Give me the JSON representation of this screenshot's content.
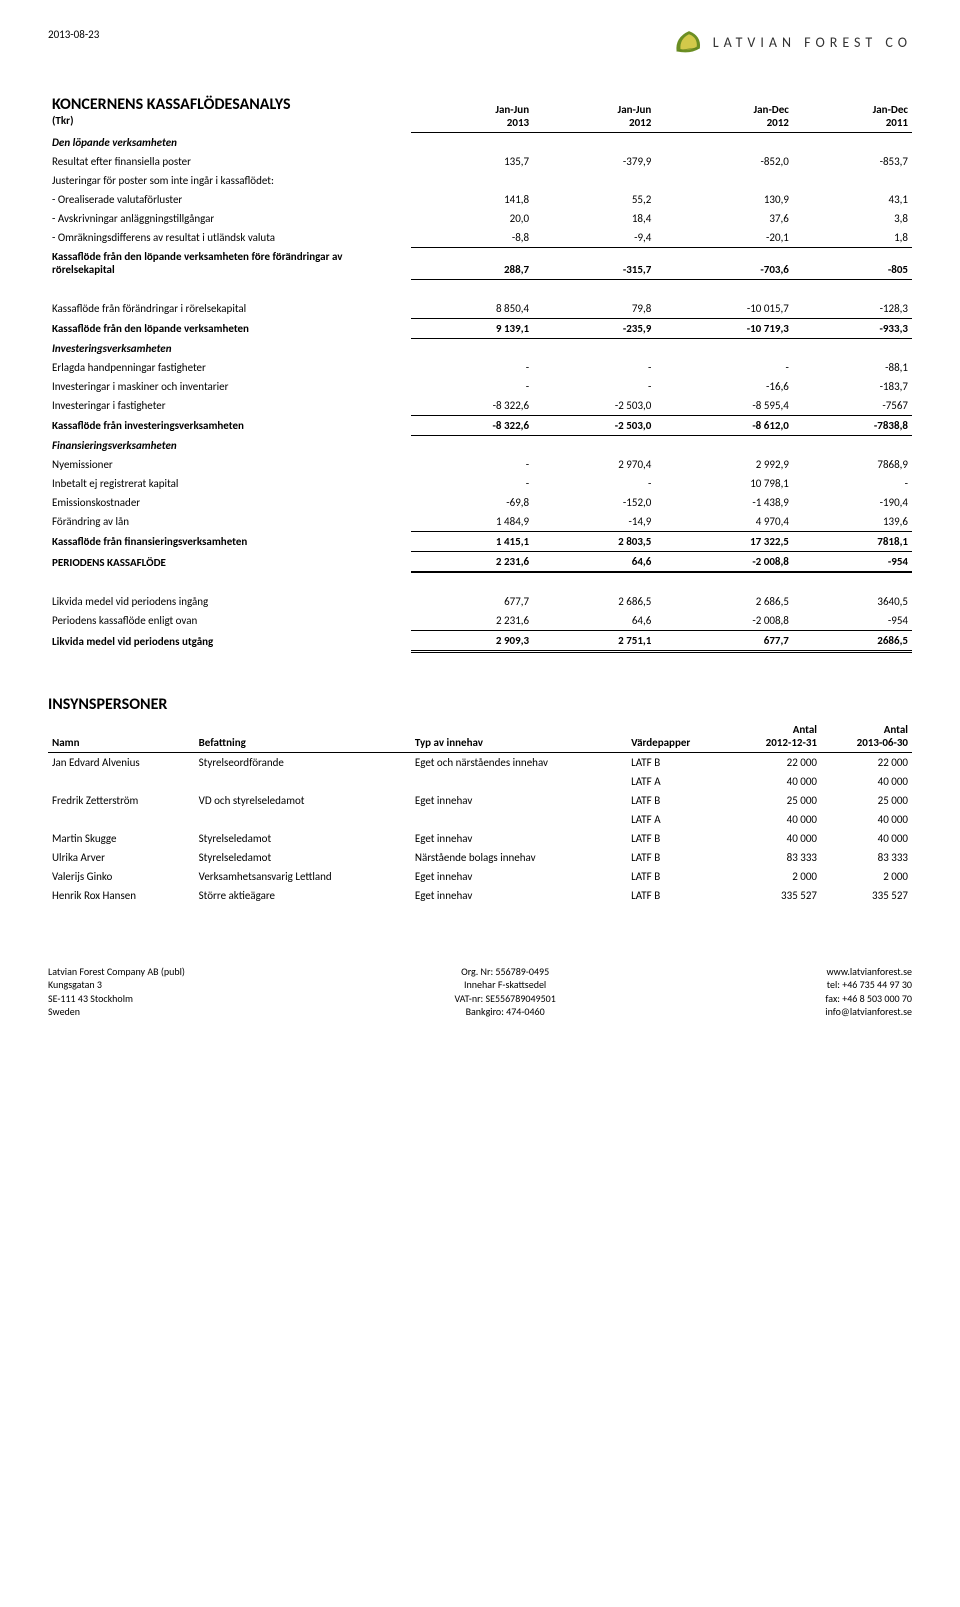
{
  "doc_date": "2013-08-23",
  "logo": {
    "text": "LATVIAN FOREST CO",
    "leaf_outer": "#6b8e23",
    "leaf_inner": "#d2c94a"
  },
  "cashflow": {
    "title": "KONCERNENS KASSAFLÖDESANALYS",
    "subtitle": "(Tkr)",
    "col_headers": [
      {
        "l1": "Jan-Jun",
        "l2": "2013"
      },
      {
        "l1": "Jan-Jun",
        "l2": "2012"
      },
      {
        "l1": "Jan-Dec",
        "l2": "2012"
      },
      {
        "l1": "Jan-Dec",
        "l2": "2011"
      }
    ],
    "s1_header": "Den löpande verksamheten",
    "rows_s1": [
      {
        "label": "Resultat efter finansiella poster",
        "v": [
          "135,7",
          "-379,9",
          "-852,0",
          "-853,7"
        ]
      },
      {
        "label": "Justeringar för poster som inte ingår i kassaflödet:",
        "v": [
          "",
          "",
          "",
          ""
        ]
      },
      {
        "label": " - Orealiserade valutaförluster",
        "v": [
          "141,8",
          "55,2",
          "130,9",
          "43,1"
        ]
      },
      {
        "label": " - Avskrivningar anläggningstillgångar",
        "v": [
          "20,0",
          "18,4",
          "37,6",
          "3,8"
        ]
      },
      {
        "label": " - Omräkningsdifferens av resultat i utländsk valuta",
        "v": [
          "-8,8",
          "-9,4",
          "-20,1",
          "1,8"
        ]
      }
    ],
    "s1_total": {
      "label": "Kassaflöde från den löpande verksamheten före förändringar av rörelsekapital",
      "v": [
        "288,7",
        "-315,7",
        "-703,6",
        "-805"
      ]
    },
    "s2_row": {
      "label": "Kassaflöde från förändringar i rörelsekapital",
      "v": [
        "8 850,4",
        "79,8",
        "-10 015,7",
        "-128,3"
      ]
    },
    "s2_total": {
      "label": "Kassaflöde från den löpande verksamheten",
      "v": [
        "9 139,1",
        "-235,9",
        "-10 719,3",
        "-933,3"
      ]
    },
    "s3_header": "Investeringsverksamheten",
    "rows_s3": [
      {
        "label": "Erlagda handpenningar fastigheter",
        "v": [
          "-",
          "-",
          "-",
          "-88,1"
        ]
      },
      {
        "label": "Investeringar i maskiner och inventarier",
        "v": [
          "-",
          "-",
          "-16,6",
          "-183,7"
        ]
      },
      {
        "label": "Investeringar i fastigheter",
        "v": [
          "-8 322,6",
          "-2 503,0",
          "-8 595,4",
          "-7567"
        ]
      }
    ],
    "s3_total": {
      "label": "Kassaflöde från investeringsverksamheten",
      "v": [
        "-8 322,6",
        "-2 503,0",
        "-8 612,0",
        "-7838,8"
      ]
    },
    "s4_header": "Finansieringsverksamheten",
    "rows_s4": [
      {
        "label": "Nyemissioner",
        "v": [
          "-",
          "2 970,4",
          "2 992,9",
          "7868,9"
        ]
      },
      {
        "label": "Inbetalt ej registrerat kapital",
        "v": [
          "-",
          "-",
          "10 798,1",
          "-"
        ]
      },
      {
        "label": "Emissionskostnader",
        "v": [
          "-69,8",
          "-152,0",
          "-1 438,9",
          "-190,4"
        ]
      },
      {
        "label": "Förändring av lån",
        "v": [
          "1 484,9",
          "-14,9",
          "4 970,4",
          "139,6"
        ]
      }
    ],
    "s4_total": {
      "label": "Kassaflöde från finansieringsverksamheten",
      "v": [
        "1 415,1",
        "2 803,5",
        "17 322,5",
        "7818,1"
      ]
    },
    "period_total": {
      "label": "PERIODENS KASSAFLÖDE",
      "v": [
        "2 231,6",
        "64,6",
        "-2 008,8",
        "-954"
      ]
    },
    "rows_end": [
      {
        "label": "Likvida medel vid periodens ingång",
        "v": [
          "677,7",
          "2 686,5",
          "2 686,5",
          "3640,5"
        ]
      },
      {
        "label": "Periodens kassaflöde enligt ovan",
        "v": [
          "2 231,6",
          "64,6",
          "-2 008,8",
          "-954"
        ]
      }
    ],
    "end_total": {
      "label": "Likvida medel vid periodens utgång",
      "v": [
        "2 909,3",
        "2 751,1",
        "677,7",
        "2686,5"
      ]
    }
  },
  "insyn": {
    "title": "INSYNSPERSONER",
    "cols": [
      "Namn",
      "Befattning",
      "Typ av innehav",
      "Värdepapper"
    ],
    "col5": {
      "l1": "Antal",
      "l2": "2012-12-31"
    },
    "col6": {
      "l1": "Antal",
      "l2": "2013-06-30"
    },
    "rows": [
      {
        "n": "Jan Edvard Alvenius",
        "b": "Styrelseordförande",
        "t": "Eget och närståendes innehav",
        "vp": "LATF B",
        "a1": "22 000",
        "a2": "22 000"
      },
      {
        "n": "",
        "b": "",
        "t": "",
        "vp": "LATF A",
        "a1": "40 000",
        "a2": "40 000"
      },
      {
        "n": "Fredrik Zetterström",
        "b": "VD och styrelseledamot",
        "t": "Eget innehav",
        "vp": "LATF B",
        "a1": "25 000",
        "a2": "25 000"
      },
      {
        "n": "",
        "b": "",
        "t": "",
        "vp": "LATF A",
        "a1": "40 000",
        "a2": "40 000"
      },
      {
        "n": "Martin Skugge",
        "b": "Styrelseledamot",
        "t": "Eget innehav",
        "vp": "LATF B",
        "a1": "40 000",
        "a2": "40 000"
      },
      {
        "n": "Ulrika Arver",
        "b": "Styrelseledamot",
        "t": "Närstående bolags innehav",
        "vp": "LATF B",
        "a1": "83 333",
        "a2": "83 333"
      },
      {
        "n": "Valerijs Ginko",
        "b": "Verksamhetsansvarig Lettland",
        "t": "Eget innehav",
        "vp": "LATF B",
        "a1": "2 000",
        "a2": "2 000"
      },
      {
        "n": "Henrik Rox Hansen",
        "b": "Större aktieägare",
        "t": "Eget innehav",
        "vp": "LATF B",
        "a1": "335 527",
        "a2": "335 527"
      }
    ]
  },
  "footer": {
    "left": [
      "Latvian Forest Company AB (publ)",
      "Kungsgatan 3",
      "SE-111 43 Stockholm",
      "Sweden"
    ],
    "center": [
      "Org. Nr: 556789-0495",
      "Innehar F-skattsedel",
      "VAT-nr: SE556789049501",
      "Bankgiro: 474-0460"
    ],
    "right": [
      "www.latvianforest.se",
      "tel: +46 735 44 97 30",
      "fax: +46 8 503 000 70",
      "info@latvianforest.se"
    ]
  }
}
